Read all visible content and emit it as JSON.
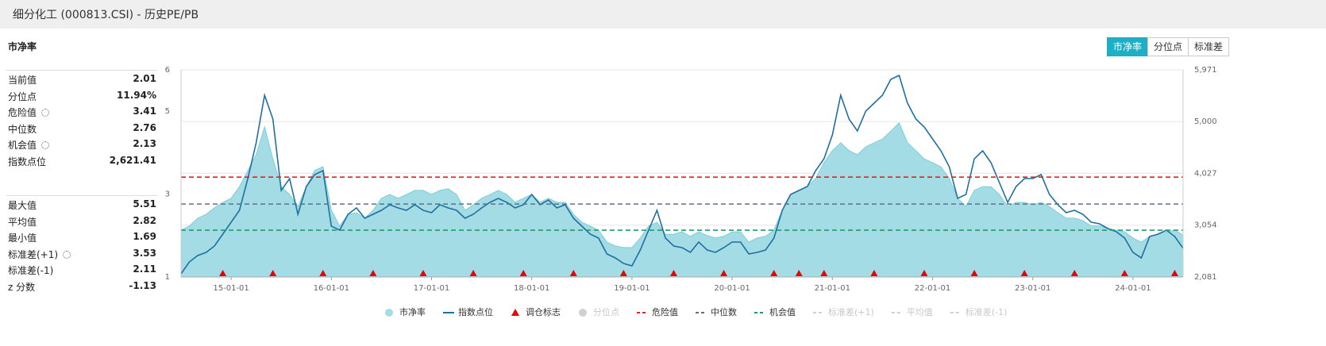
{
  "header": {
    "title": "细分化工 (000813.CSI) - 历史PE/PB"
  },
  "panel_title": "市净率",
  "tabs": [
    "市净率",
    "分位点",
    "标准差"
  ],
  "stats": [
    [
      {
        "label": "当前值",
        "value": "2.01"
      },
      {
        "label": "分位点",
        "value": "11.94%"
      },
      {
        "label": "危险值",
        "value": "3.41"
      },
      {
        "label": "中位数",
        "value": "2.76"
      },
      {
        "label": "机会值",
        "value": "2.13"
      },
      {
        "label": "指数点位",
        "value": "2,621.41"
      }
    ],
    [
      {
        "label": "最大值",
        "value": "5.51"
      },
      {
        "label": "平均值",
        "value": "2.82"
      },
      {
        "label": "最小值",
        "value": "1.69"
      },
      {
        "label": "标准差(+1)",
        "value": "3.53"
      },
      {
        "label": "标准差(-1)",
        "value": "2.11"
      },
      {
        "label": "z 分数",
        "value": "-1.13"
      }
    ]
  ],
  "chart_data": {
    "type": "line",
    "x": [
      "14-07-01",
      "14-08-01",
      "14-09-01",
      "14-10-01",
      "14-11-01",
      "14-12-01",
      "15-01-01",
      "15-02-01",
      "15-03-01",
      "15-04-01",
      "15-05-01",
      "15-06-01",
      "15-07-01",
      "15-08-01",
      "15-09-01",
      "15-10-01",
      "15-11-01",
      "15-12-01",
      "16-01-01",
      "16-02-01",
      "16-03-01",
      "16-04-01",
      "16-05-01",
      "16-06-01",
      "16-07-01",
      "16-08-01",
      "16-09-01",
      "16-10-01",
      "16-11-01",
      "16-12-01",
      "17-01-01",
      "17-02-01",
      "17-03-01",
      "17-04-01",
      "17-05-01",
      "17-06-01",
      "17-07-01",
      "17-08-01",
      "17-09-01",
      "17-10-01",
      "17-11-01",
      "17-12-01",
      "18-01-01",
      "18-02-01",
      "18-03-01",
      "18-04-01",
      "18-05-01",
      "18-06-01",
      "18-07-01",
      "18-08-01",
      "18-09-01",
      "18-10-01",
      "18-11-01",
      "18-12-01",
      "19-01-01",
      "19-02-01",
      "19-03-01",
      "19-04-01",
      "19-05-01",
      "19-06-01",
      "19-07-01",
      "19-08-01",
      "19-09-01",
      "19-10-01",
      "19-11-01",
      "19-12-01",
      "20-01-01",
      "20-02-01",
      "20-03-01",
      "20-04-01",
      "20-05-01",
      "20-06-01",
      "20-07-01",
      "20-08-01",
      "20-09-01",
      "20-10-01",
      "20-11-01",
      "20-12-01",
      "21-01-01",
      "21-02-01",
      "21-03-01",
      "21-04-01",
      "21-05-01",
      "21-06-01",
      "21-07-01",
      "21-08-01",
      "21-09-01",
      "21-10-01",
      "21-11-01",
      "21-12-01",
      "22-01-01",
      "22-02-01",
      "22-03-01",
      "22-04-01",
      "22-05-01",
      "22-06-01",
      "22-07-01",
      "22-08-01",
      "22-09-01",
      "22-10-01",
      "22-11-01",
      "22-12-01",
      "23-01-01",
      "23-02-01",
      "23-03-01",
      "23-04-01",
      "23-05-01",
      "23-06-01",
      "23-07-01",
      "23-08-01",
      "23-09-01",
      "23-10-01",
      "23-11-01",
      "23-12-01",
      "24-01-01",
      "24-02-01",
      "24-03-01",
      "24-04-01",
      "24-05-01",
      "24-06-01",
      "24-07-01"
    ],
    "series": [
      {
        "name": "市净率",
        "color": "#a3dce4",
        "values": [
          2.13,
          2.23,
          2.42,
          2.51,
          2.67,
          2.8,
          2.9,
          3.18,
          3.57,
          3.95,
          4.62,
          3.85,
          3.18,
          2.99,
          2.7,
          3.18,
          3.57,
          3.66,
          2.61,
          2.23,
          2.51,
          2.55,
          2.42,
          2.61,
          2.9,
          2.99,
          2.9,
          2.99,
          3.09,
          3.09,
          2.99,
          3.09,
          3.13,
          2.99,
          2.61,
          2.74,
          2.9,
          2.99,
          3.09,
          2.99,
          2.8,
          2.9,
          2.99,
          2.8,
          2.9,
          2.8,
          2.8,
          2.51,
          2.32,
          2.23,
          2.13,
          1.84,
          1.75,
          1.71,
          1.71,
          1.94,
          2.23,
          2.32,
          2.03,
          2.03,
          2.09,
          1.98,
          2.09,
          2.0,
          1.94,
          1.98,
          2.09,
          2.09,
          1.84,
          1.94,
          1.98,
          2.13,
          2.61,
          2.99,
          3.09,
          3.18,
          3.38,
          3.76,
          4.05,
          4.24,
          4.05,
          3.95,
          4.14,
          4.24,
          4.33,
          4.52,
          4.72,
          4.24,
          4.05,
          3.85,
          3.76,
          3.66,
          3.38,
          2.9,
          2.7,
          3.09,
          3.18,
          3.18,
          2.99,
          2.7,
          2.8,
          2.8,
          2.74,
          2.8,
          2.7,
          2.55,
          2.42,
          2.42,
          2.36,
          2.23,
          2.23,
          2.17,
          2.13,
          2.09,
          1.94,
          1.84,
          1.98,
          2.03,
          2.09,
          2.13,
          2.01
        ]
      },
      {
        "name": "指数点位",
        "color": "#1f6fa0",
        "axis": "y2",
        "values": [
          2141,
          2364,
          2483,
          2543,
          2662,
          2886,
          3109,
          3333,
          3929,
          4600,
          5494,
          5047,
          3706,
          3929,
          3258,
          3780,
          4004,
          4078,
          3035,
          2960,
          3258,
          3378,
          3184,
          3258,
          3333,
          3437,
          3378,
          3333,
          3437,
          3333,
          3288,
          3437,
          3378,
          3333,
          3184,
          3258,
          3378,
          3482,
          3556,
          3482,
          3378,
          3437,
          3631,
          3437,
          3527,
          3378,
          3437,
          3184,
          3035,
          2886,
          2811,
          2513,
          2439,
          2334,
          2290,
          2588,
          2960,
          3333,
          2811,
          2662,
          2632,
          2543,
          2737,
          2588,
          2543,
          2632,
          2737,
          2737,
          2513,
          2543,
          2588,
          2811,
          3333,
          3631,
          3706,
          3780,
          4078,
          4302,
          4749,
          5494,
          5047,
          4823,
          5196,
          5345,
          5494,
          5792,
          5867,
          5345,
          5047,
          4898,
          4674,
          4451,
          4153,
          3556,
          3631,
          4302,
          4451,
          4227,
          3855,
          3482,
          3780,
          3929,
          3929,
          4004,
          3631,
          3437,
          3288,
          3333,
          3258,
          3109,
          3080,
          2990,
          2931,
          2811,
          2543,
          2439,
          2841,
          2886,
          2960,
          2841,
          2621
        ]
      }
    ],
    "rebalance": {
      "name": "调仓标志",
      "color": "#ee0000",
      "dates": [
        "14-12-01",
        "15-06-01",
        "15-12-01",
        "16-06-01",
        "16-12-01",
        "17-06-01",
        "17-12-01",
        "18-06-01",
        "18-12-01",
        "19-06-01",
        "19-12-01",
        "20-06-01",
        "20-09-01",
        "20-12-01",
        "21-06-01",
        "21-12-01",
        "22-06-01",
        "22-12-01",
        "23-06-01",
        "23-12-01",
        "24-06-01"
      ]
    },
    "reference_lines": [
      {
        "name": "危险值",
        "value": 3.41,
        "color": "#e02222"
      },
      {
        "name": "中位数",
        "value": 2.76,
        "color": "#5d6f8e"
      },
      {
        "name": "机会值",
        "value": 2.13,
        "color": "#1f9e6a"
      }
    ],
    "legend_disabled": [
      "分位点",
      "标准差(+1)",
      "平均值",
      "标准差(-1)"
    ],
    "xticks": [
      "15-01-01",
      "16-01-01",
      "17-01-01",
      "18-01-01",
      "19-01-01",
      "20-01-01",
      "21-01-01",
      "22-01-01",
      "23-01-01",
      "24-01-01"
    ],
    "ylim": [
      1,
      6
    ],
    "yticks": [
      1,
      3,
      5,
      6
    ],
    "y2lim": [
      2081,
      5971
    ],
    "y2ticks": [
      {
        "value": 2081,
        "label": "2,081"
      },
      {
        "value": 3054,
        "label": "3,054"
      },
      {
        "value": 4027,
        "label": "4,027"
      },
      {
        "value": 5000,
        "label": "5,000"
      },
      {
        "value": 5971,
        "label": "5,971"
      }
    ],
    "grid": true
  }
}
